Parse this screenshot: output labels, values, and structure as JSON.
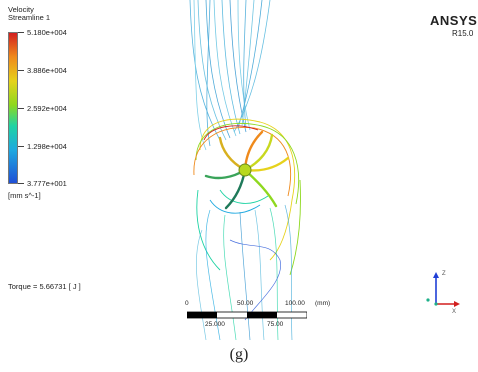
{
  "legend": {
    "title_line1": "Velocity",
    "title_line2": "Streamline 1",
    "ticks": [
      "5.180e+004",
      "3.886e+004",
      "2.592e+004",
      "1.298e+004",
      "3.777e+001"
    ],
    "unit": "[mm s^-1]",
    "colors": [
      "#d21f1f",
      "#e6d21c",
      "#1fd3a4",
      "#1f4fd6"
    ]
  },
  "brand": {
    "name": "ANSYS",
    "version": "R15.0"
  },
  "torque": "Torque = 5.66731 [ J ]",
  "scale_bar": {
    "top_labels": [
      "0",
      "50.00",
      "100.00",
      "(mm)"
    ],
    "bottom_labels": [
      "25.000",
      "75.00"
    ]
  },
  "triad": {
    "z": "Z",
    "x": "X"
  },
  "caption": "(g)"
}
